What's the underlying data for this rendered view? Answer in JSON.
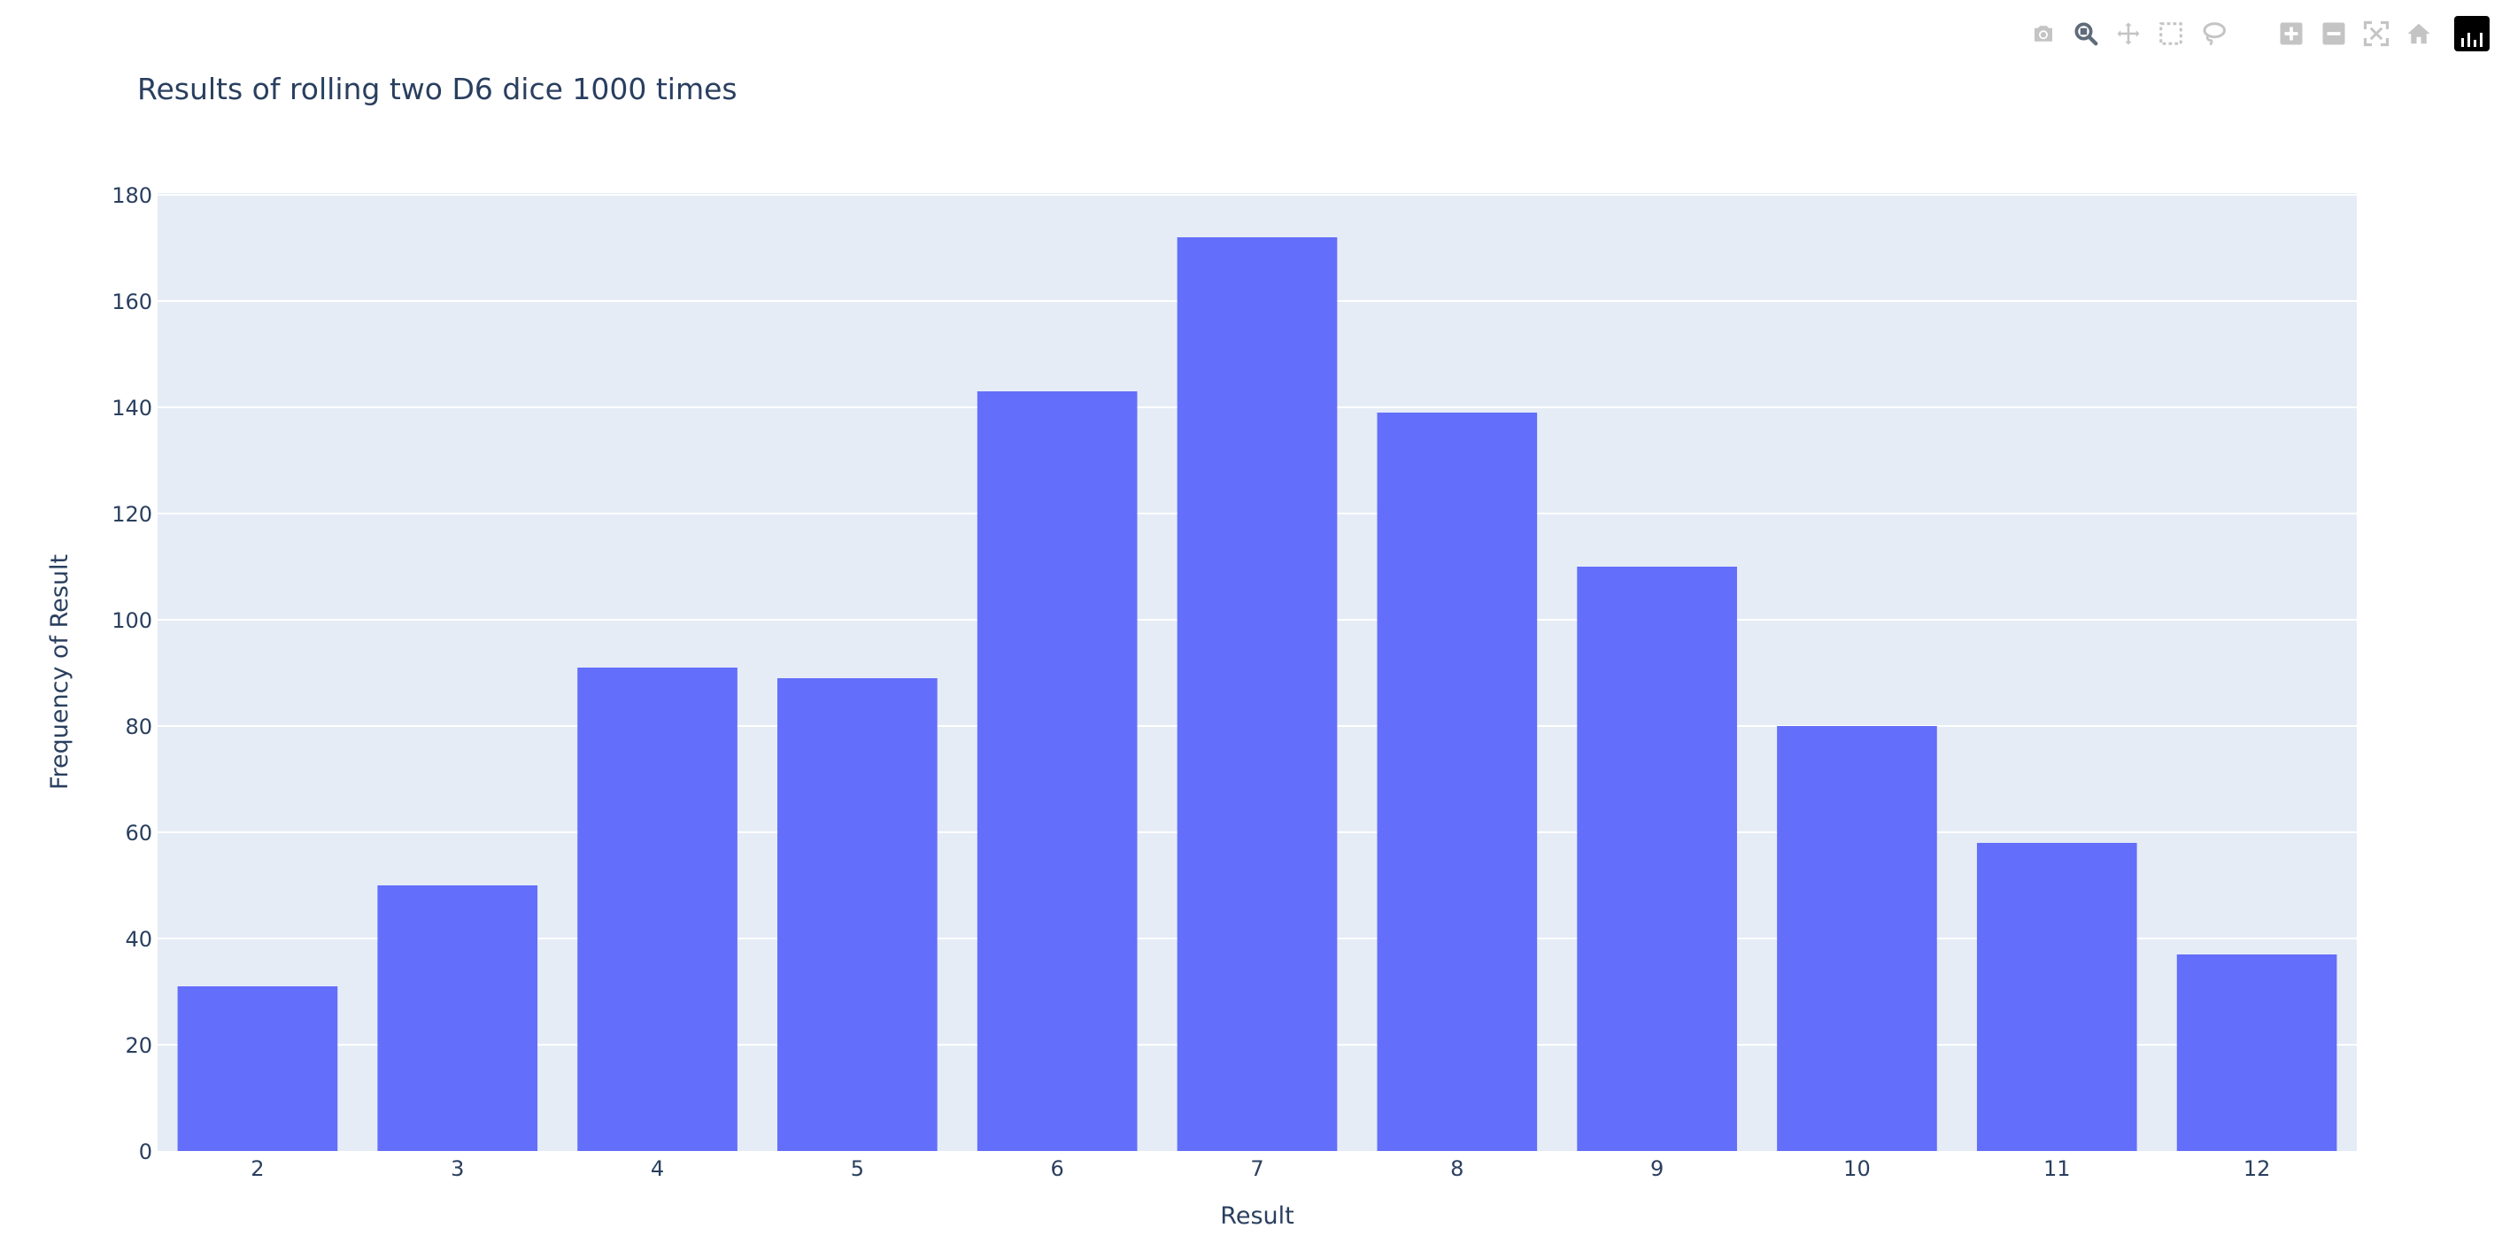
{
  "modebar": {
    "icons": [
      "camera-icon",
      "zoom-icon",
      "pan-icon",
      "box-select-icon",
      "lasso-icon",
      "zoom-in-icon",
      "zoom-out-icon",
      "autoscale-icon",
      "home-icon",
      "plotly-logo-icon"
    ],
    "active_icon": "zoom-icon"
  },
  "colors": {
    "bar": "#636efa",
    "plot_bg": "#e5ecf6",
    "grid": "#ffffff",
    "text": "#2a3f5f",
    "axis_text": "#2a3f5f",
    "icon": "#c4c4c4",
    "icon_active": "#5f6b7a"
  },
  "chart_data": {
    "type": "bar",
    "title": "Results of rolling two D6 dice 1000 times",
    "xlabel": "Result",
    "ylabel": "Frequency of Result",
    "categories": [
      "2",
      "3",
      "4",
      "5",
      "6",
      "7",
      "8",
      "9",
      "10",
      "11",
      "12"
    ],
    "values": [
      31,
      50,
      91,
      89,
      143,
      172,
      139,
      110,
      80,
      58,
      37
    ],
    "ylim": [
      0,
      180
    ],
    "yticks": [
      "0",
      "20",
      "40",
      "60",
      "80",
      "100",
      "120",
      "140",
      "160",
      "180"
    ],
    "grid": true,
    "legend": "none"
  }
}
